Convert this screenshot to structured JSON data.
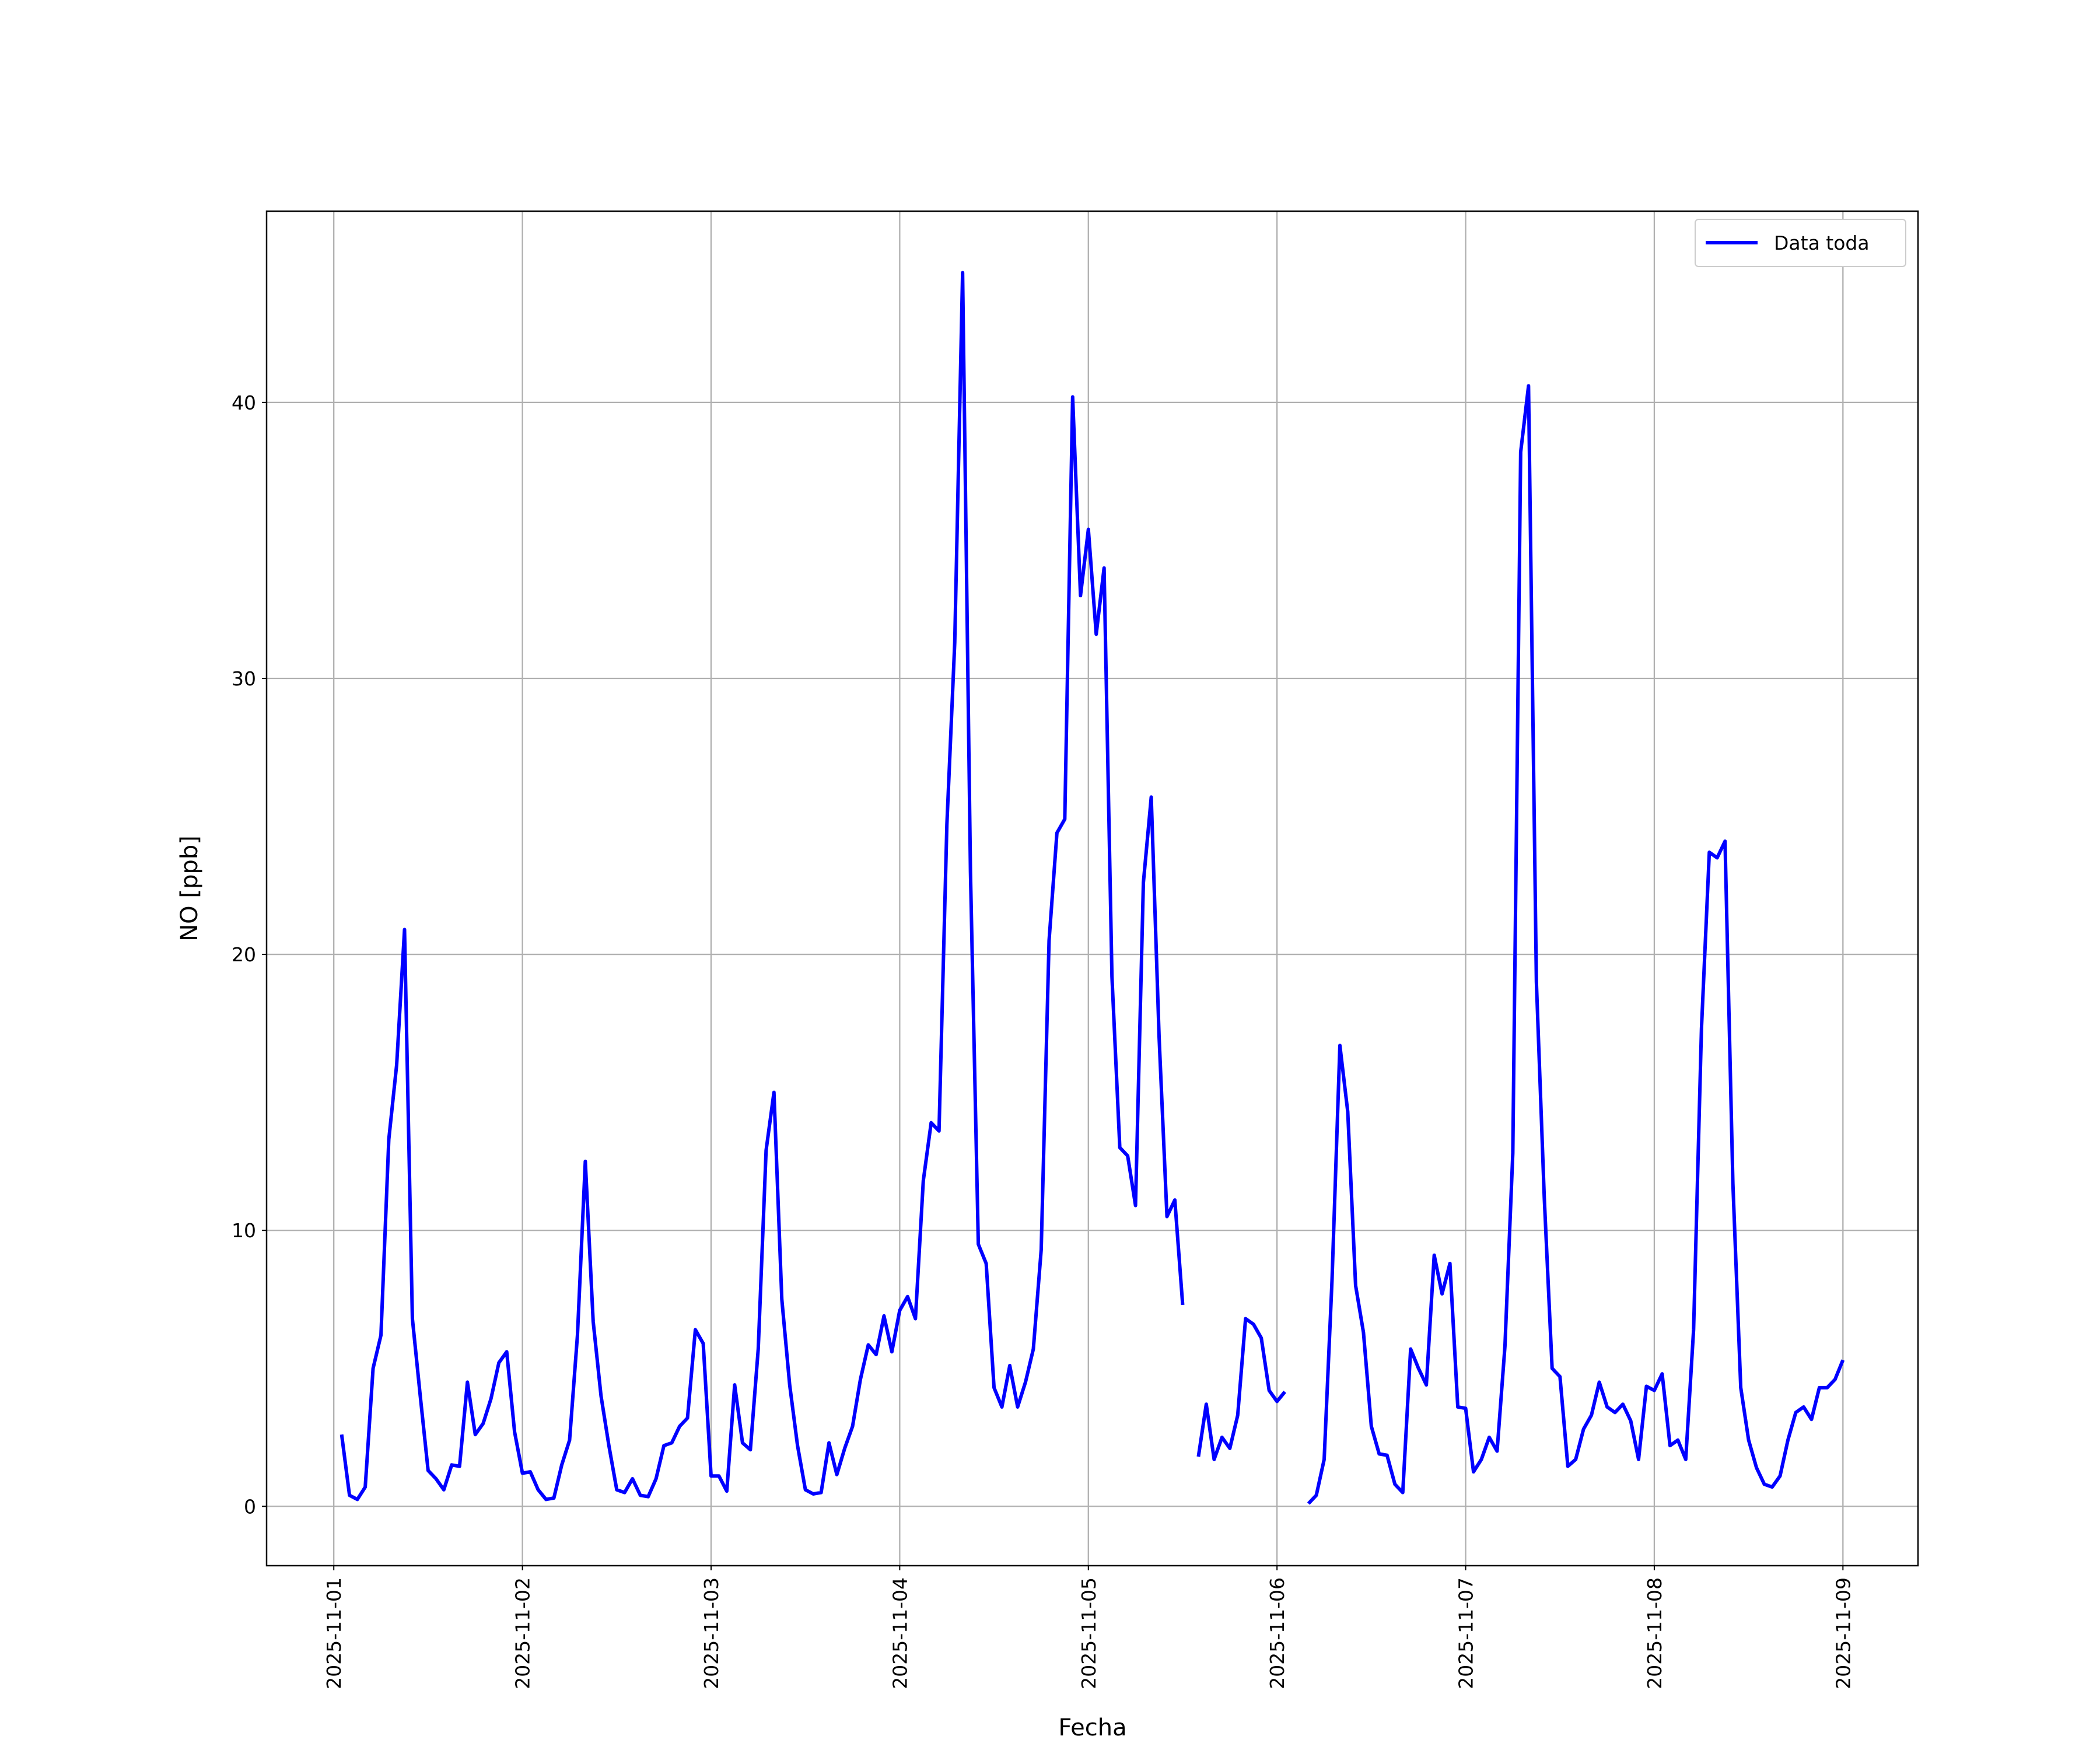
{
  "chart_data": {
    "type": "line",
    "xlabel": "Fecha",
    "ylabel": "NO [ppb]",
    "x": [
      "2025-11-01T01:00",
      "2025-11-01T02:00",
      "2025-11-01T03:00",
      "2025-11-01T04:00",
      "2025-11-01T05:00",
      "2025-11-01T06:00",
      "2025-11-01T07:00",
      "2025-11-01T08:00",
      "2025-11-01T09:00",
      "2025-11-01T10:00",
      "2025-11-01T11:00",
      "2025-11-01T12:00",
      "2025-11-01T13:00",
      "2025-11-01T14:00",
      "2025-11-01T15:00",
      "2025-11-01T16:00",
      "2025-11-01T17:00",
      "2025-11-01T18:00",
      "2025-11-01T19:00",
      "2025-11-01T20:00",
      "2025-11-01T21:00",
      "2025-11-01T22:00",
      "2025-11-01T23:00",
      "2025-11-02T00:00",
      "2025-11-02T01:00",
      "2025-11-02T02:00",
      "2025-11-02T03:00",
      "2025-11-02T04:00",
      "2025-11-02T05:00",
      "2025-11-02T06:00",
      "2025-11-02T07:00",
      "2025-11-02T08:00",
      "2025-11-02T09:00",
      "2025-11-02T10:00",
      "2025-11-02T11:00",
      "2025-11-02T12:00",
      "2025-11-02T13:00",
      "2025-11-02T14:00",
      "2025-11-02T15:00",
      "2025-11-02T16:00",
      "2025-11-02T17:00",
      "2025-11-02T18:00",
      "2025-11-02T19:00",
      "2025-11-02T20:00",
      "2025-11-02T21:00",
      "2025-11-02T22:00",
      "2025-11-02T23:00",
      "2025-11-03T00:00",
      "2025-11-03T01:00",
      "2025-11-03T02:00",
      "2025-11-03T03:00",
      "2025-11-03T04:00",
      "2025-11-03T05:00",
      "2025-11-03T06:00",
      "2025-11-03T07:00",
      "2025-11-03T08:00",
      "2025-11-03T09:00",
      "2025-11-03T10:00",
      "2025-11-03T11:00",
      "2025-11-03T12:00",
      "2025-11-03T13:00",
      "2025-11-03T14:00",
      "2025-11-03T15:00",
      "2025-11-03T16:00",
      "2025-11-03T17:00",
      "2025-11-03T18:00",
      "2025-11-03T19:00",
      "2025-11-03T20:00",
      "2025-11-03T21:00",
      "2025-11-03T22:00",
      "2025-11-03T23:00",
      "2025-11-04T00:00",
      "2025-11-04T01:00",
      "2025-11-04T02:00",
      "2025-11-04T03:00",
      "2025-11-04T04:00",
      "2025-11-04T05:00",
      "2025-11-04T06:00",
      "2025-11-04T07:00",
      "2025-11-04T08:00",
      "2025-11-04T09:00",
      "2025-11-04T10:00",
      "2025-11-04T11:00",
      "2025-11-04T12:00",
      "2025-11-04T13:00",
      "2025-11-04T14:00",
      "2025-11-04T15:00",
      "2025-11-04T16:00",
      "2025-11-04T17:00",
      "2025-11-04T18:00",
      "2025-11-04T19:00",
      "2025-11-04T20:00",
      "2025-11-04T21:00",
      "2025-11-04T22:00",
      "2025-11-04T23:00",
      "2025-11-05T00:00",
      "2025-11-05T01:00",
      "2025-11-05T02:00",
      "2025-11-05T03:00",
      "2025-11-05T04:00",
      "2025-11-05T05:00",
      "2025-11-05T06:00",
      "2025-11-05T07:00",
      "2025-11-05T08:00",
      "2025-11-05T09:00",
      "2025-11-05T10:00",
      "2025-11-05T11:00",
      "2025-11-05T12:00",
      "2025-11-05T13:00",
      "2025-11-05T14:00",
      "2025-11-05T15:00",
      "2025-11-05T16:00",
      "2025-11-05T17:00",
      "2025-11-05T18:00",
      "2025-11-05T19:00",
      "2025-11-05T20:00",
      "2025-11-05T21:00",
      "2025-11-05T22:00",
      "2025-11-05T23:00",
      "2025-11-06T00:00",
      "2025-11-06T01:00",
      "2025-11-06T02:00",
      "2025-11-06T03:00",
      "2025-11-06T04:00",
      "2025-11-06T05:00",
      "2025-11-06T06:00",
      "2025-11-06T07:00",
      "2025-11-06T08:00",
      "2025-11-06T09:00",
      "2025-11-06T10:00",
      "2025-11-06T11:00",
      "2025-11-06T12:00",
      "2025-11-06T13:00",
      "2025-11-06T14:00",
      "2025-11-06T15:00",
      "2025-11-06T16:00",
      "2025-11-06T17:00",
      "2025-11-06T18:00",
      "2025-11-06T19:00",
      "2025-11-06T20:00",
      "2025-11-06T21:00",
      "2025-11-06T22:00",
      "2025-11-06T23:00",
      "2025-11-07T00:00",
      "2025-11-07T01:00",
      "2025-11-07T02:00",
      "2025-11-07T03:00",
      "2025-11-07T04:00",
      "2025-11-07T05:00",
      "2025-11-07T06:00",
      "2025-11-07T07:00",
      "2025-11-07T08:00",
      "2025-11-07T09:00",
      "2025-11-07T10:00",
      "2025-11-07T11:00",
      "2025-11-07T12:00",
      "2025-11-07T13:00",
      "2025-11-07T14:00",
      "2025-11-07T15:00",
      "2025-11-07T16:00",
      "2025-11-07T17:00",
      "2025-11-07T18:00",
      "2025-11-07T19:00",
      "2025-11-07T20:00",
      "2025-11-07T21:00",
      "2025-11-07T22:00",
      "2025-11-07T23:00",
      "2025-11-08T00:00",
      "2025-11-08T01:00",
      "2025-11-08T02:00",
      "2025-11-08T03:00",
      "2025-11-08T04:00",
      "2025-11-08T05:00",
      "2025-11-08T06:00",
      "2025-11-08T07:00",
      "2025-11-08T08:00",
      "2025-11-08T09:00",
      "2025-11-08T10:00",
      "2025-11-08T11:00",
      "2025-11-08T12:00",
      "2025-11-08T13:00",
      "2025-11-08T14:00",
      "2025-11-08T15:00",
      "2025-11-08T16:00",
      "2025-11-08T17:00",
      "2025-11-08T18:00",
      "2025-11-08T19:00",
      "2025-11-08T20:00",
      "2025-11-08T21:00",
      "2025-11-08T22:00",
      "2025-11-08T23:00",
      "2025-11-09T00:00"
    ],
    "series": [
      {
        "name": "Data toda",
        "color": "#0000ff",
        "values": [
          2.6,
          0.4,
          0.25,
          0.7,
          5.0,
          6.2,
          13.3,
          16,
          20.9,
          6.8,
          4.0,
          1.3,
          1.0,
          0.6,
          1.5,
          1.45,
          4.5,
          2.6,
          3.0,
          3.9,
          5.2,
          5.6,
          2.7,
          1.2,
          1.25,
          0.6,
          0.25,
          0.3,
          1.5,
          2.4,
          6.2,
          12.5,
          6.7,
          4.0,
          2.2,
          0.6,
          0.5,
          1.0,
          0.4,
          0.35,
          1.0,
          2.2,
          2.3,
          2.9,
          3.2,
          6.4,
          5.9,
          1.1,
          1.1,
          0.55,
          4.4,
          2.3,
          2.05,
          5.7,
          12.9,
          15.0,
          7.5,
          4.4,
          2.2,
          0.6,
          0.45,
          0.5,
          2.3,
          1.15,
          2.1,
          2.9,
          4.6,
          5.85,
          5.5,
          6.9,
          5.6,
          7.1,
          7.6,
          6.8,
          11.8,
          13.9,
          13.6,
          24.7,
          31.3,
          44.7,
          23,
          9.5,
          8.8,
          4.3,
          3.6,
          5.1,
          3.6,
          4.5,
          5.7,
          9.3,
          20.5,
          24.4,
          24.9,
          40.2,
          33.0,
          35.4,
          31.6,
          34.0,
          19.2,
          13.0,
          12.7,
          10.9,
          22.6,
          25.7,
          17,
          10.5,
          11.1,
          7.3,
          null,
          1.8,
          3.7,
          1.7,
          2.5,
          2.1,
          3.3,
          6.8,
          6.6,
          6.1,
          4.2,
          3.8,
          4.15,
          null,
          null,
          0.1,
          0.4,
          1.7,
          8.2,
          16.7,
          14.3,
          8.0,
          6.3,
          2.9,
          1.9,
          1.85,
          0.8,
          0.5,
          5.7,
          5.0,
          4.4,
          9.1,
          7.7,
          8.8,
          3.6,
          3.55,
          1.25,
          1.7,
          2.5,
          2.0,
          5.8,
          12.8,
          38.2,
          40.6,
          19,
          11.2,
          5.0,
          4.7,
          1.45,
          1.7,
          2.8,
          3.3,
          4.5,
          3.6,
          3.4,
          3.7,
          3.1,
          1.7,
          4.35,
          4.2,
          4.8,
          2.2,
          2.4,
          1.7,
          6.4,
          17.3,
          23.7,
          23.5,
          24.1,
          11.7,
          4.3,
          2.4,
          1.4,
          0.8,
          0.7,
          1.1,
          2.4,
          3.4,
          3.6,
          3.15,
          4.3,
          4.3,
          4.6,
          5.3
        ]
      }
    ],
    "xlim": [
      "2025-10-31T15:27",
      "2025-11-09T09:33"
    ],
    "xticks": [
      "2025-11-01",
      "2025-11-02",
      "2025-11-03",
      "2025-11-04",
      "2025-11-05",
      "2025-11-06",
      "2025-11-07",
      "2025-11-08",
      "2025-11-09"
    ],
    "ylim": [
      -2.15,
      46.93
    ],
    "yticks": [
      0,
      10,
      20,
      30,
      40
    ],
    "grid": true,
    "legend": "upper right"
  }
}
